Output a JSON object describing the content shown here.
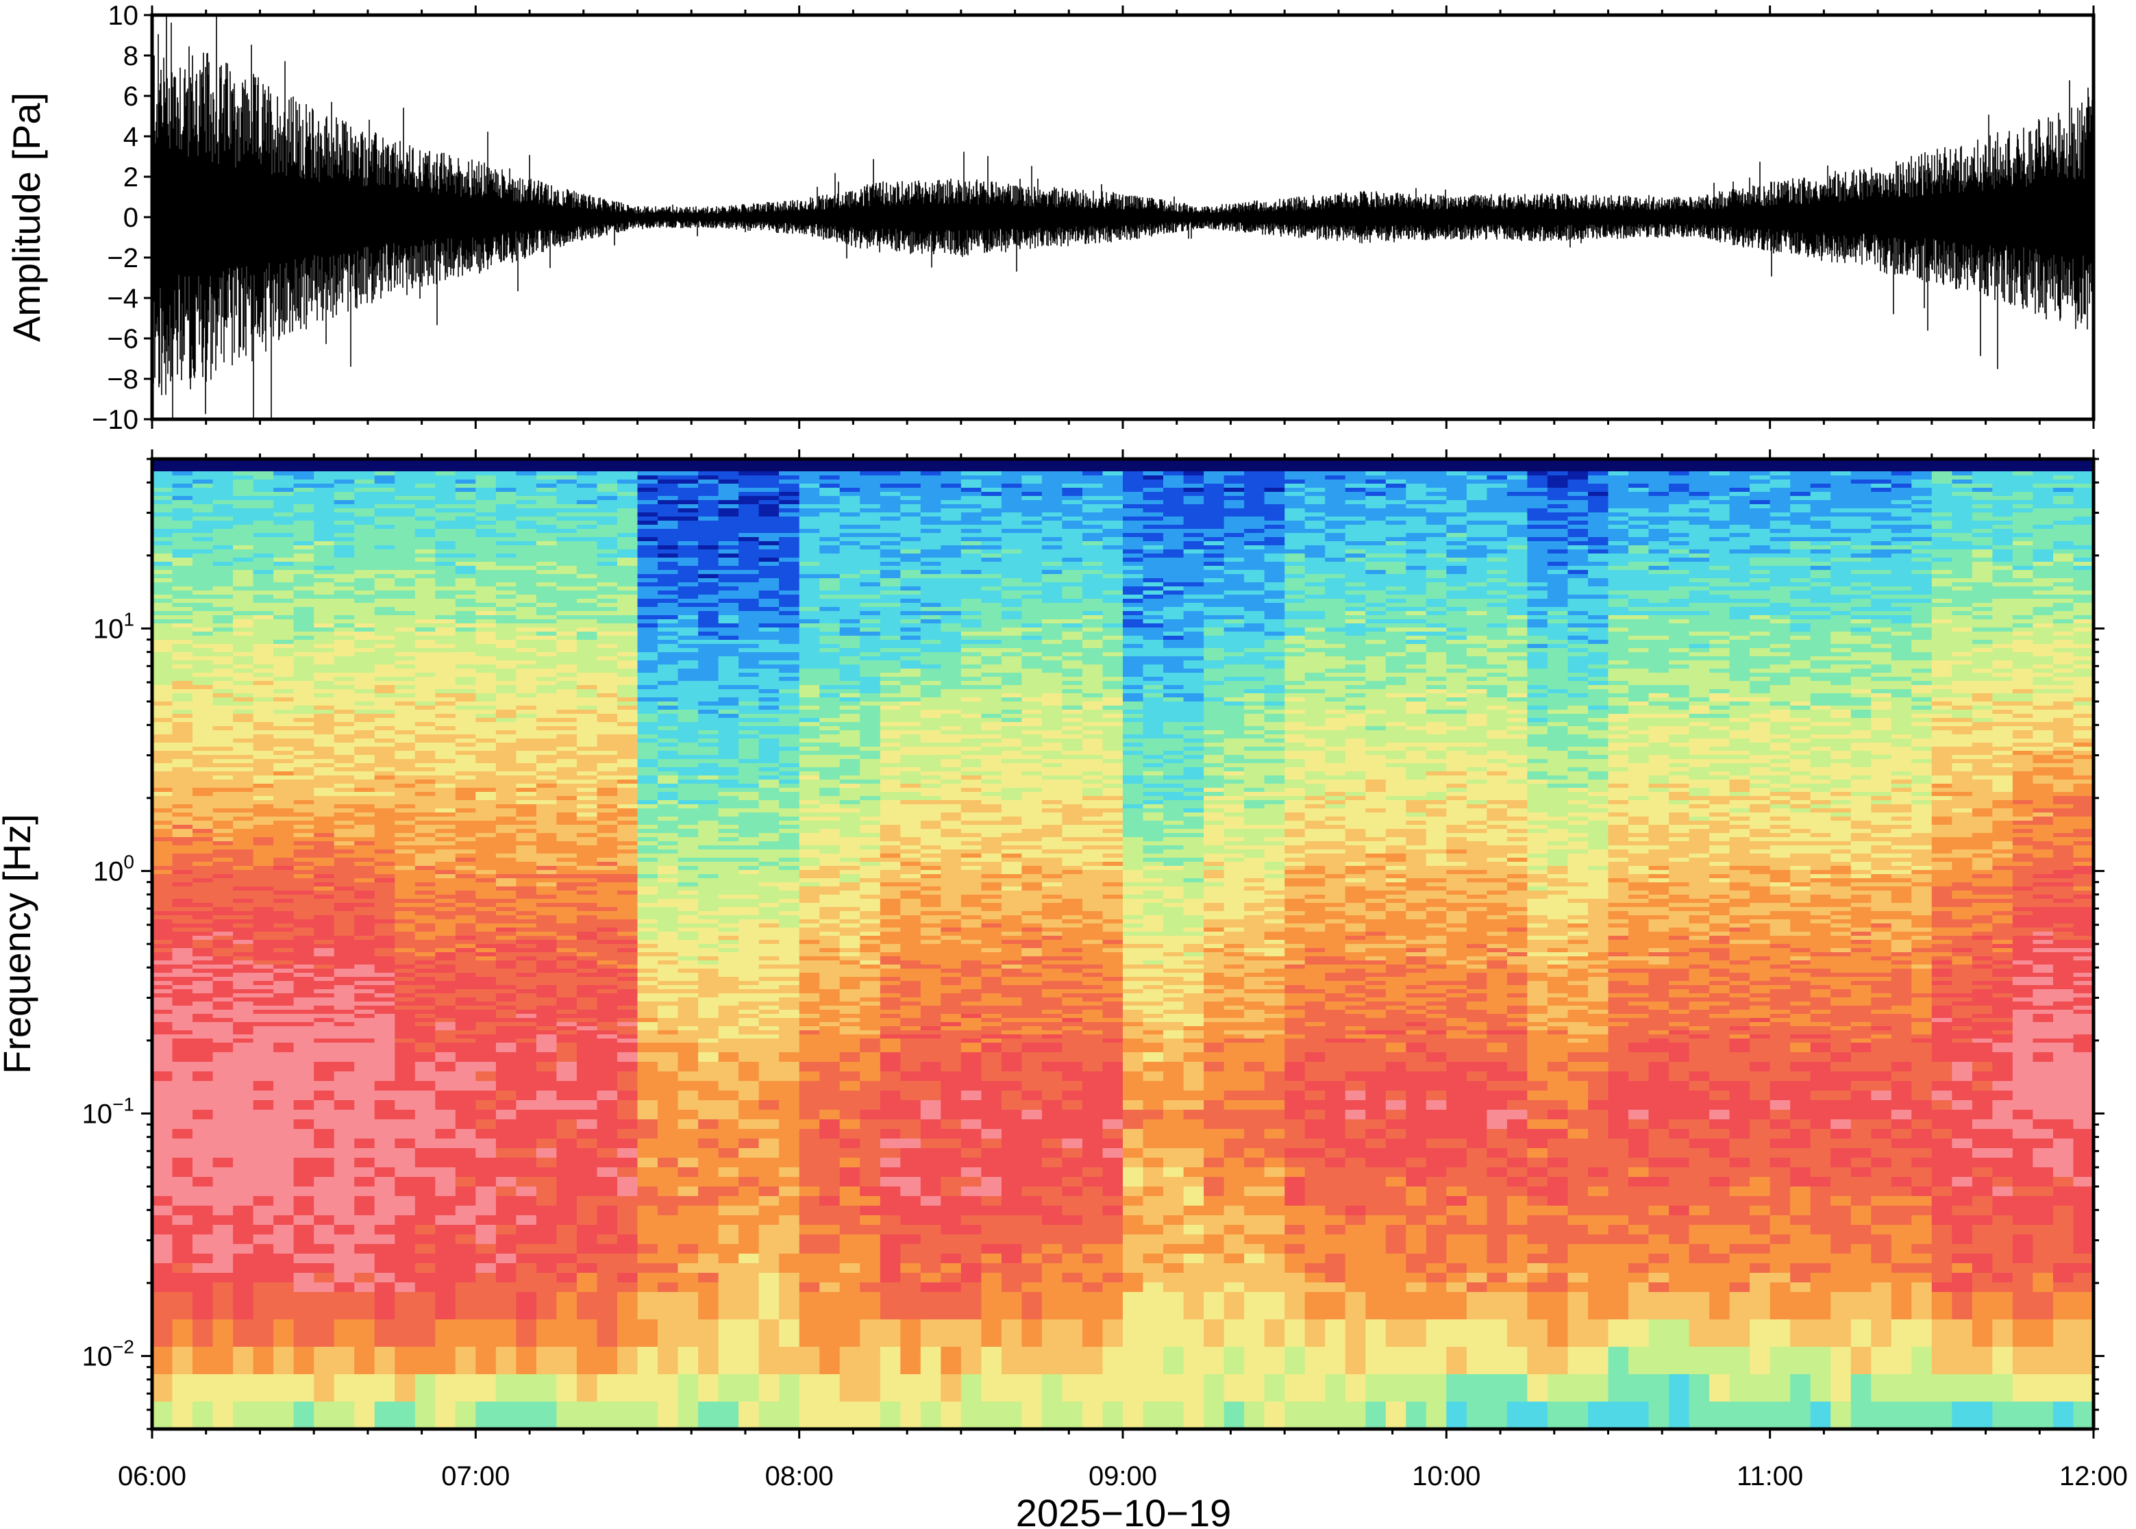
{
  "chart_data": [
    {
      "type": "line",
      "ylabel": "Amplitude [Pa]",
      "ylim": [
        -10,
        10
      ],
      "yticks": [
        "10",
        "8",
        "6",
        "4",
        "2",
        "0",
        "−2",
        "−4",
        "−6",
        "−8",
        "−10"
      ],
      "ytick_values": [
        10,
        8,
        6,
        4,
        2,
        0,
        -2,
        -4,
        -6,
        -8,
        -10
      ],
      "grid": false,
      "series": [
        {
          "color": "#000000",
          "envelope_time_hours": [
            6.0,
            6.25,
            6.5,
            6.75,
            7.0,
            7.25,
            7.5,
            7.75,
            8.0,
            8.25,
            8.5,
            8.75,
            9.0,
            9.25,
            9.5,
            9.75,
            10.0,
            10.25,
            10.5,
            10.75,
            11.0,
            11.25,
            11.5,
            11.75,
            12.0
          ],
          "envelope_amplitude_pa": [
            8.5,
            7.0,
            5.0,
            3.5,
            2.6,
            1.4,
            0.5,
            0.5,
            0.8,
            1.6,
            1.8,
            1.4,
            1.1,
            0.5,
            0.9,
            1.2,
            1.0,
            1.1,
            1.0,
            0.9,
            1.6,
            2.2,
            3.0,
            4.0,
            5.5
          ]
        }
      ]
    },
    {
      "type": "heatmap",
      "xlabel": "2025−10−19",
      "ylabel": "Frequency [Hz]",
      "yscale": "log",
      "xlim": [
        "06:00",
        "12:00"
      ],
      "xticks": [
        "06:00",
        "07:00",
        "08:00",
        "09:00",
        "10:00",
        "11:00",
        "12:00"
      ],
      "ylim": [
        0.005,
        50
      ],
      "yticks": [
        {
          "base": "10",
          "exp": "1",
          "value": 10
        },
        {
          "base": "10",
          "exp": "0",
          "value": 1
        },
        {
          "base": "10",
          "exp": "−1",
          "value": 0.1
        },
        {
          "base": "10",
          "exp": "−2",
          "value": 0.01
        }
      ],
      "colormap": [
        "#0a1fa8",
        "#1550e0",
        "#2e9ff0",
        "#50d8e6",
        "#7ee8b2",
        "#c8f08c",
        "#f4ec8a",
        "#f8c266",
        "#f89440",
        "#f26a4c",
        "#f04e52",
        "#f88c94"
      ],
      "time_columns_hours": [
        6.0,
        6.25,
        6.5,
        6.75,
        7.0,
        7.25,
        7.5,
        7.75,
        8.0,
        8.25,
        8.5,
        8.75,
        9.0,
        9.25,
        9.5,
        9.75,
        10.0,
        10.25,
        10.5,
        10.75,
        11.0,
        11.25,
        11.5,
        11.75
      ],
      "frequency_rows_hz": [
        40,
        20,
        10,
        5,
        2,
        1,
        0.5,
        0.2,
        0.1,
        0.05,
        0.02,
        0.01,
        0.006
      ],
      "level_index": [
        [
          3,
          3,
          3,
          3,
          3,
          3,
          1,
          1,
          2,
          2,
          2,
          2,
          1,
          1,
          2,
          2,
          2,
          1,
          2,
          2,
          2,
          2,
          3,
          3
        ],
        [
          4,
          4,
          4,
          4,
          4,
          4,
          1,
          1,
          3,
          3,
          3,
          3,
          2,
          2,
          3,
          3,
          3,
          2,
          3,
          3,
          3,
          3,
          4,
          4
        ],
        [
          5,
          5,
          5,
          5,
          5,
          5,
          2,
          2,
          3,
          3,
          4,
          4,
          2,
          3,
          4,
          4,
          4,
          3,
          4,
          4,
          4,
          4,
          5,
          5
        ],
        [
          6,
          6,
          6,
          6,
          6,
          6,
          3,
          3,
          4,
          5,
          5,
          5,
          3,
          4,
          5,
          5,
          5,
          4,
          5,
          5,
          5,
          5,
          6,
          6
        ],
        [
          7,
          7,
          7,
          7,
          7,
          7,
          4,
          4,
          5,
          6,
          6,
          6,
          4,
          5,
          6,
          6,
          6,
          5,
          6,
          6,
          6,
          6,
          7,
          8
        ],
        [
          9,
          9,
          9,
          8,
          8,
          8,
          5,
          5,
          6,
          7,
          7,
          7,
          5,
          6,
          7,
          7,
          7,
          6,
          7,
          7,
          7,
          7,
          8,
          9
        ],
        [
          10,
          10,
          10,
          9,
          9,
          9,
          6,
          6,
          7,
          8,
          8,
          8,
          6,
          7,
          8,
          8,
          8,
          7,
          8,
          8,
          8,
          8,
          9,
          10
        ],
        [
          11,
          11,
          11,
          10,
          10,
          10,
          7,
          7,
          8,
          9,
          9,
          9,
          7,
          8,
          9,
          9,
          9,
          8,
          9,
          9,
          9,
          9,
          10,
          11
        ],
        [
          11,
          11,
          11,
          11,
          10,
          10,
          8,
          8,
          9,
          10,
          10,
          10,
          8,
          9,
          10,
          10,
          10,
          9,
          10,
          10,
          10,
          10,
          10,
          11
        ],
        [
          11,
          11,
          11,
          10,
          10,
          10,
          8,
          8,
          9,
          10,
          10,
          10,
          7,
          8,
          9,
          9,
          9,
          9,
          9,
          9,
          9,
          9,
          10,
          10
        ],
        [
          10,
          10,
          10,
          10,
          10,
          9,
          8,
          7,
          8,
          9,
          9,
          8,
          7,
          7,
          8,
          8,
          8,
          8,
          8,
          8,
          8,
          8,
          9,
          9
        ],
        [
          8,
          8,
          8,
          8,
          8,
          8,
          7,
          6,
          7,
          7,
          7,
          7,
          6,
          6,
          6,
          6,
          6,
          7,
          5,
          6,
          6,
          6,
          7,
          7
        ],
        [
          5,
          5,
          5,
          5,
          4,
          5,
          5,
          5,
          5,
          5,
          5,
          5,
          5,
          5,
          5,
          5,
          4,
          4,
          3,
          4,
          4,
          4,
          3,
          4
        ]
      ]
    }
  ]
}
